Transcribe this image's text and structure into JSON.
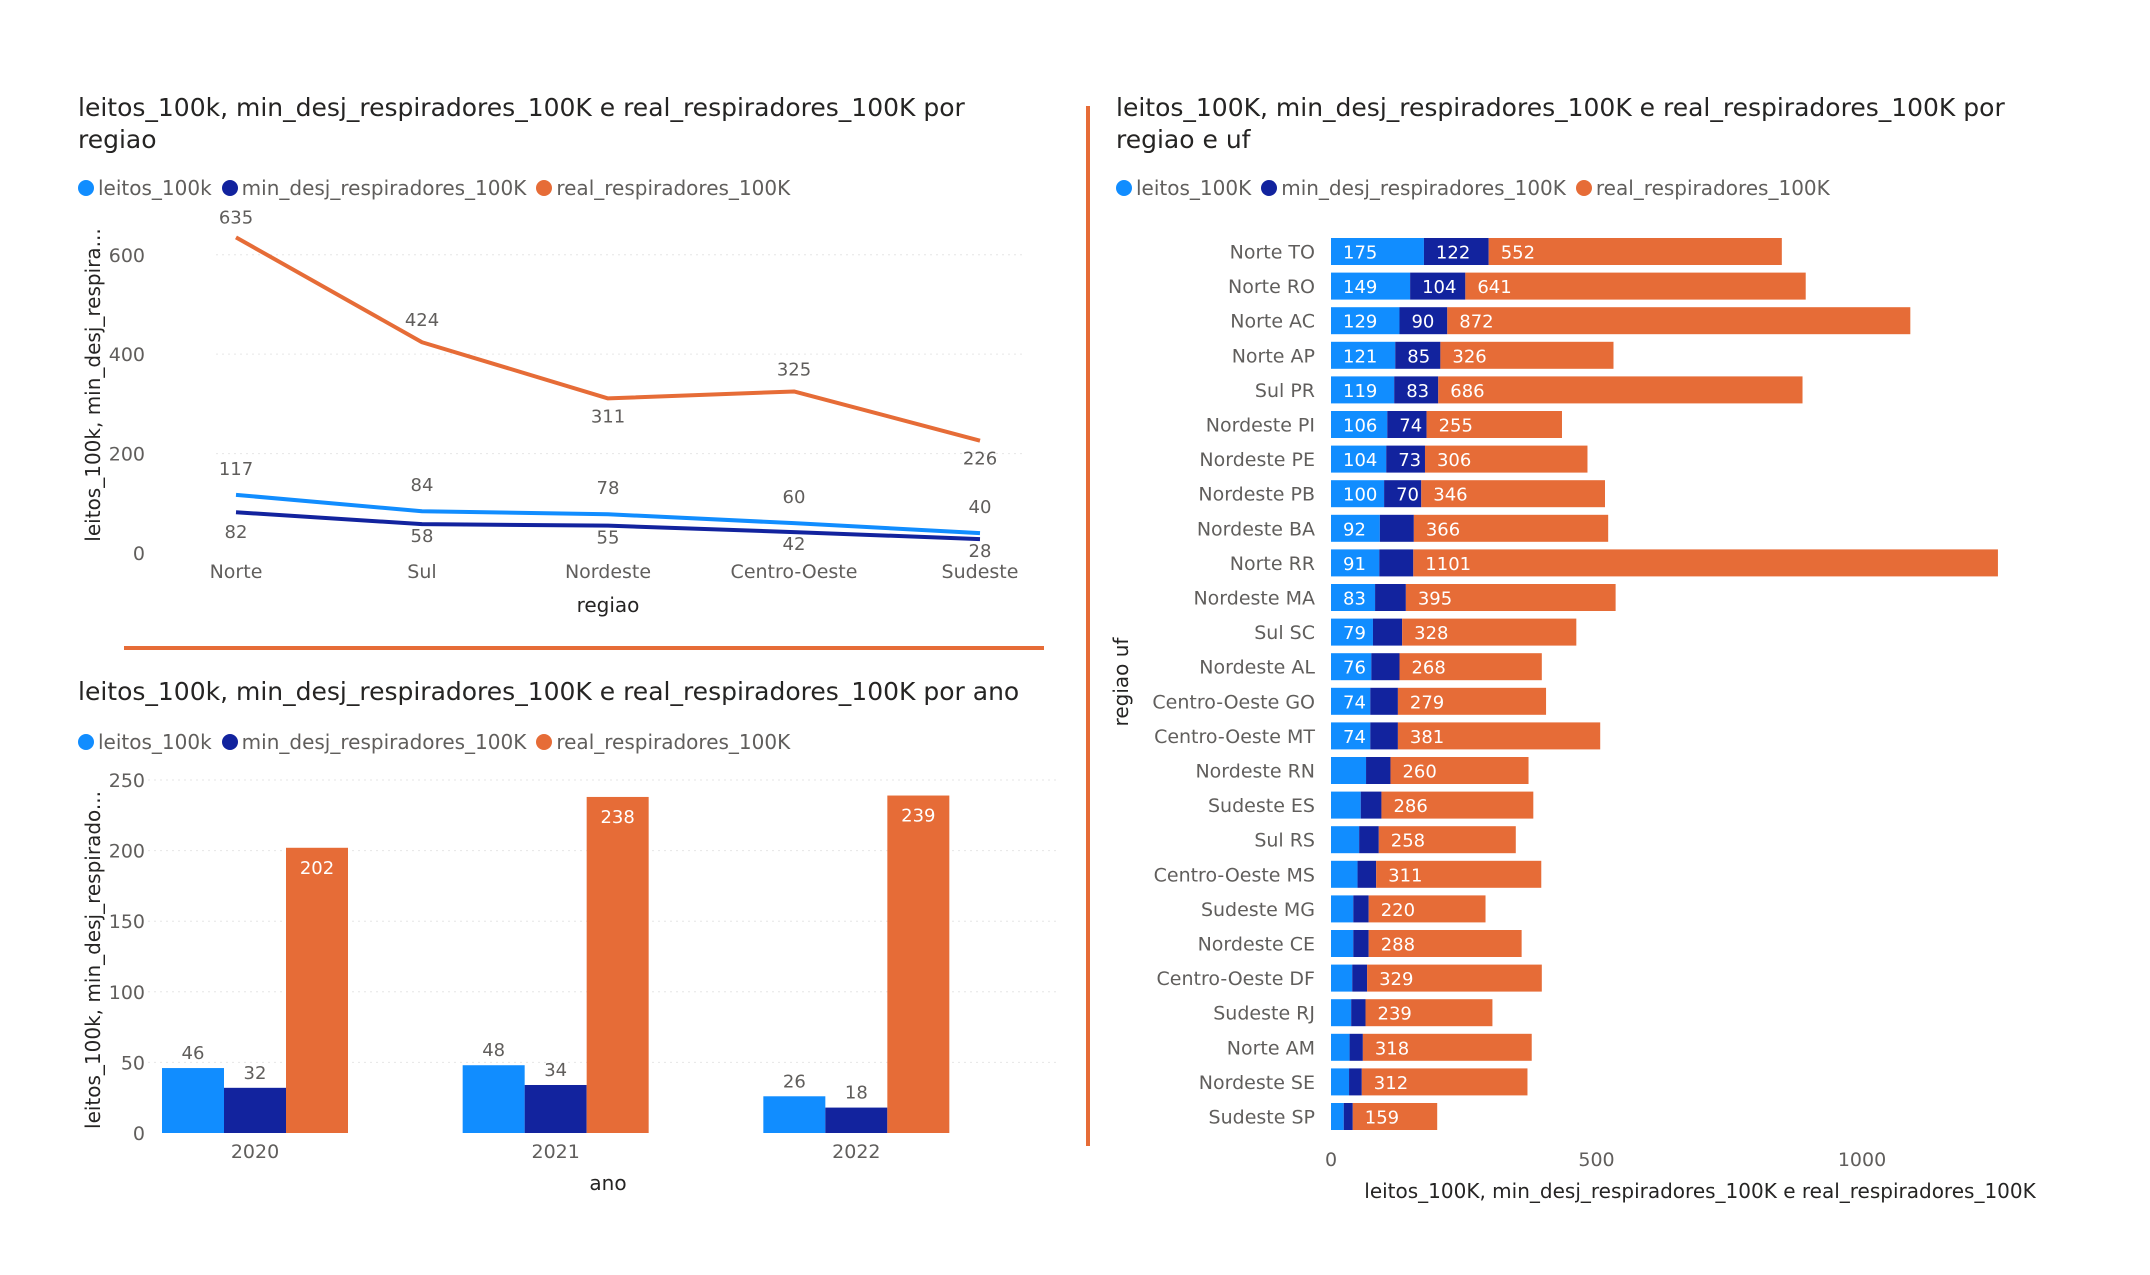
{
  "colors": {
    "leitos": "#118dff",
    "min_desj": "#12239e",
    "real": "#e66c37",
    "grid": "#e6e6e6",
    "axis_text": "#605e5c",
    "label_text": "#605e5c"
  },
  "chart_data": [
    {
      "type": "line",
      "title": "leitos_100k, min_desj_respiradores_100K e real_respiradores_100K por\nregiao",
      "xlabel": "regiao",
      "ylabel": "leitos_100k, min_desj_respira...",
      "categories": [
        "Norte",
        "Sul",
        "Nordeste",
        "Centro-Oeste",
        "Sudeste"
      ],
      "ylim": [
        0,
        680
      ],
      "yticks": [
        "0",
        "200",
        "400",
        "600"
      ],
      "legend": {
        "position": "top-left"
      },
      "series": [
        {
          "name": "leitos_100k",
          "color_key": "leitos",
          "values": [
            117,
            84,
            78,
            60,
            40
          ]
        },
        {
          "name": "min_desj_respiradores_100K",
          "color_key": "min_desj",
          "values": [
            82,
            58,
            55,
            42,
            28
          ]
        },
        {
          "name": "real_respiradores_100K",
          "color_key": "real",
          "values": [
            635,
            424,
            311,
            325,
            226
          ]
        }
      ]
    },
    {
      "type": "bar",
      "title": "leitos_100k, min_desj_respiradores_100K e real_respiradores_100K por ano",
      "xlabel": "ano",
      "ylabel": "leitos_100k, min_desj_respirado...",
      "categories": [
        "2020",
        "2021",
        "2022"
      ],
      "ylim": [
        0,
        250
      ],
      "yticks": [
        "0",
        "50",
        "100",
        "150",
        "200",
        "250"
      ],
      "legend": {
        "position": "top-left"
      },
      "series": [
        {
          "name": "leitos_100k",
          "color_key": "leitos",
          "values": [
            46,
            48,
            26
          ]
        },
        {
          "name": "min_desj_respiradores_100K",
          "color_key": "min_desj",
          "values": [
            32,
            34,
            18
          ]
        },
        {
          "name": "real_respiradores_100K",
          "color_key": "real",
          "values": [
            202,
            238,
            239
          ]
        }
      ]
    },
    {
      "type": "bar",
      "orientation": "horizontal",
      "stacked": true,
      "title": "leitos_100K, min_desj_respiradores_100K e real_respiradores_100K por\nregiao e uf",
      "xlabel": "leitos_100K, min_desj_respiradores_100K e real_respiradores_100K",
      "ylabel": "regiao uf",
      "xlim": [
        0,
        1300
      ],
      "xticks": [
        {
          "value": 0,
          "label": "0"
        },
        {
          "value": 500,
          "label": "500"
        },
        {
          "value": 1000,
          "label": "1000"
        }
      ],
      "legend": {
        "position": "top-left"
      },
      "categories": [
        "Norte TO",
        "Norte RO",
        "Norte AC",
        "Norte AP",
        "Sul PR",
        "Nordeste PI",
        "Nordeste PE",
        "Nordeste PB",
        "Nordeste BA",
        "Norte RR",
        "Nordeste MA",
        "Sul SC",
        "Nordeste AL",
        "Centro-Oeste GO",
        "Centro-Oeste MT",
        "Nordeste RN",
        "Sudeste ES",
        "Sul RS",
        "Centro-Oeste MS",
        "Sudeste MG",
        "Nordeste CE",
        "Centro-Oeste DF",
        "Sudeste RJ",
        "Norte AM",
        "Nordeste SE",
        "Sudeste SP"
      ],
      "series": [
        {
          "name": "leitos_100K",
          "color_key": "leitos",
          "values": [
            175,
            149,
            129,
            121,
            119,
            106,
            104,
            100,
            92,
            91,
            83,
            79,
            76,
            74,
            74,
            66,
            56,
            53,
            50,
            42,
            42,
            40,
            38,
            35,
            34,
            24
          ]
        },
        {
          "name": "min_desj_respiradores_100K",
          "color_key": "min_desj",
          "values": [
            122,
            104,
            90,
            85,
            83,
            74,
            73,
            70,
            64,
            64,
            58,
            55,
            53,
            52,
            52,
            46,
            39,
            37,
            35,
            29,
            29,
            28,
            27,
            25,
            24,
            17
          ]
        },
        {
          "name": "real_respiradores_100K",
          "color_key": "real",
          "values": [
            552,
            641,
            872,
            326,
            686,
            255,
            306,
            346,
            366,
            1101,
            395,
            328,
            268,
            279,
            381,
            260,
            286,
            258,
            311,
            220,
            288,
            329,
            239,
            318,
            312,
            159
          ]
        }
      ],
      "label_thresholds": {
        "leitos": 70,
        "min_desj": 70
      }
    }
  ]
}
